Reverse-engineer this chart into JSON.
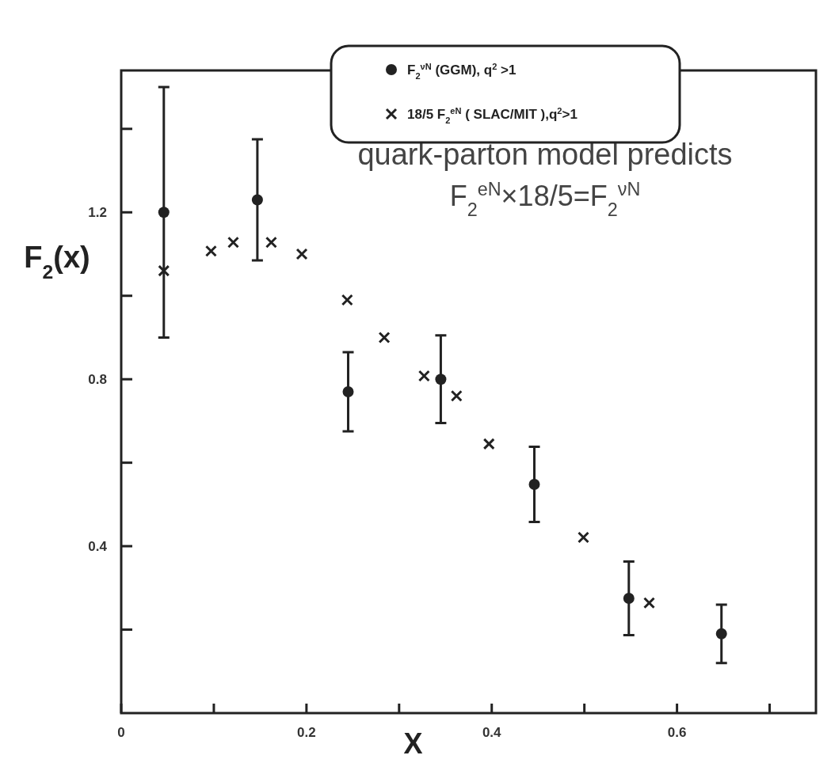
{
  "chart_data": {
    "type": "scatter",
    "xlabel": "X",
    "ylabel": "F$_{2}$(x)",
    "xlim": [
      0,
      0.75
    ],
    "ylim": [
      0,
      1.54
    ],
    "xticks": [
      0,
      {
        "value": 0.1,
        "label": null
      },
      0.2,
      {
        "value": 0.3,
        "label": null
      },
      0.4,
      {
        "value": 0.5,
        "label": null
      },
      0.6,
      {
        "value": 0.7,
        "label": null
      }
    ],
    "yticks": [
      {
        "value": 0.2,
        "label": null
      },
      0.4,
      {
        "value": 0.6,
        "label": null
      },
      0.8,
      {
        "value": 1.0,
        "label": null
      },
      1.2,
      {
        "value": 1.4,
        "label": null
      }
    ],
    "legend": "top",
    "grid": false,
    "annotations": [
      "quark-parton model predicts",
      "F$_{2}$$^{eN}$×18/5=F$_{2}$$^{νN}$"
    ],
    "series": [
      {
        "name": "F$_{2}$$^{νN}$ (GGM), q$^{2}$ >1",
        "color": "#222222",
        "marker": "circle",
        "x": [
          0.046,
          0.147,
          0.245,
          0.345,
          0.446,
          0.548,
          0.648
        ],
        "values": [
          1.2,
          1.23,
          0.77,
          0.8,
          0.548,
          0.275,
          0.19
        ],
        "errors": [
          0.3,
          0.145,
          0.095,
          0.105,
          0.09,
          0.088,
          0.07
        ]
      },
      {
        "name": "18/5 F$_{2}$$^{eN}$ ( SLAC/MIT ),q$^{2}$>1",
        "color": "#222222",
        "marker": "cross",
        "x": [
          0.046,
          0.097,
          0.121,
          0.162,
          0.195,
          0.244,
          0.284,
          0.327,
          0.362,
          0.397,
          0.499,
          0.57
        ],
        "values": [
          1.06,
          1.107,
          1.128,
          1.128,
          1.1,
          0.99,
          0.9,
          0.808,
          0.76,
          0.645,
          0.421,
          0.264
        ]
      }
    ]
  }
}
